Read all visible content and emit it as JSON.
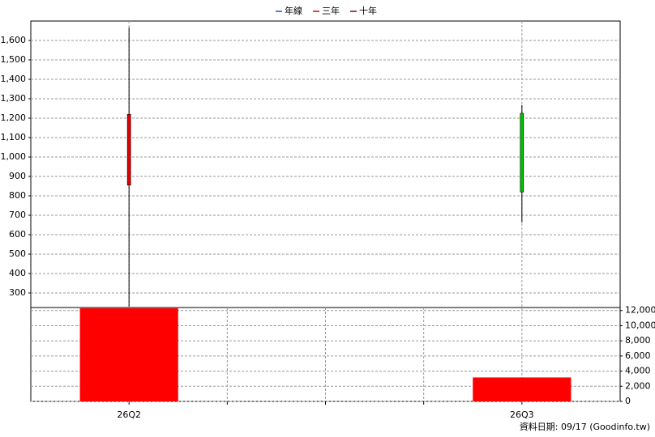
{
  "chart_data": {
    "type": "candlestick",
    "legend": [
      {
        "name": "年線",
        "color": "#1f4fd1"
      },
      {
        "name": "三年",
        "color": "#e00000"
      },
      {
        "name": "十年",
        "color": "#800040"
      }
    ],
    "categories": [
      "26Q2",
      "26Q3"
    ],
    "open": [
      855,
      1225
    ],
    "high": [
      1667,
      1267
    ],
    "low": [
      230,
      663
    ],
    "close": [
      1220,
      820
    ],
    "up_color": "#e00000",
    "down_color": "#00c000",
    "ylim": [
      225,
      1700
    ],
    "yticks": [
      300,
      400,
      500,
      600,
      700,
      800,
      900,
      {
        "value": 1000,
        "label": "1,000"
      },
      {
        "value": 1100,
        "label": "1,100"
      },
      {
        "value": 1200,
        "label": "1,200"
      },
      {
        "value": 1300,
        "label": "1,300"
      },
      {
        "value": 1400,
        "label": "1,400"
      },
      {
        "value": 1500,
        "label": "1,500"
      },
      {
        "value": 1600,
        "label": "1,600"
      }
    ],
    "volume": {
      "values": [
        12300,
        3160
      ],
      "color": "#ff0000"
    },
    "y2lim": [
      0,
      12400
    ],
    "y2ticks": [
      0,
      {
        "value": 2000,
        "label": "2,000"
      },
      {
        "value": 4000,
        "label": "4,000"
      },
      {
        "value": 6000,
        "label": "6,000"
      },
      {
        "value": 8000,
        "label": "8,000"
      },
      {
        "value": 10000,
        "label": "10,000"
      },
      {
        "value": 12000,
        "label": "12,000"
      }
    ],
    "grid": true,
    "footer": "資料日期: 09/17  (Goodinfo.tw)"
  }
}
